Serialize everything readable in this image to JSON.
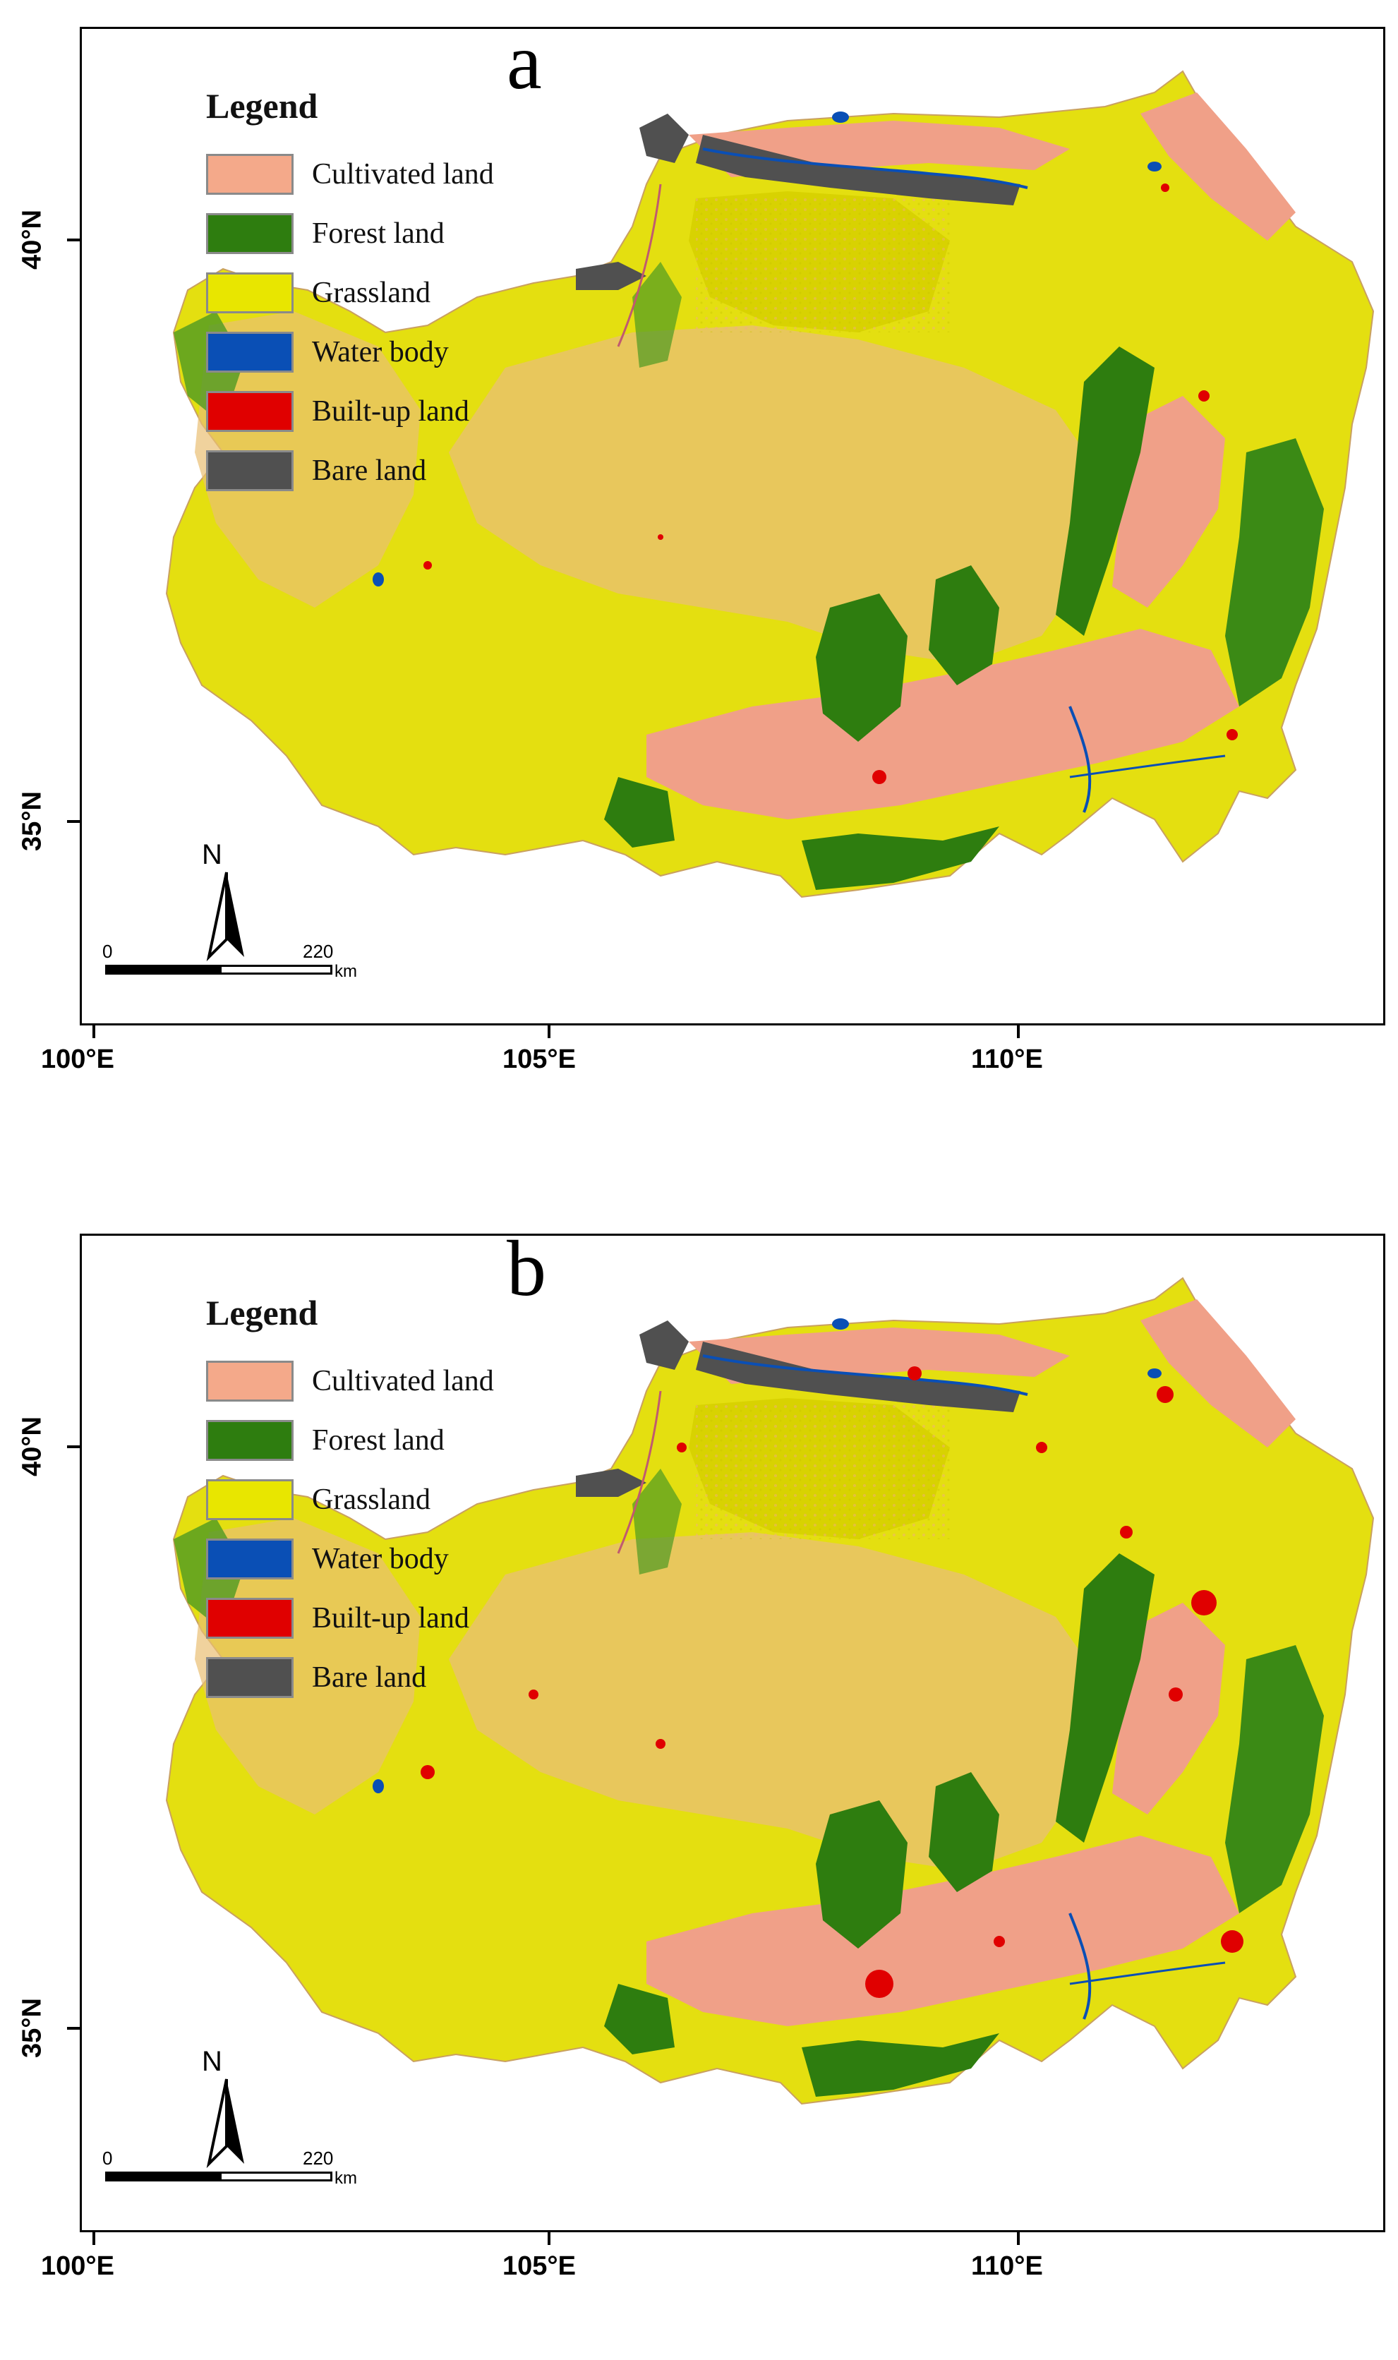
{
  "panels": [
    {
      "letter": "a",
      "legend": {
        "title": "Legend",
        "items": [
          {
            "label": "Cultivated land",
            "color": "#f4a98a"
          },
          {
            "label": "Forest land",
            "color": "#2e7d0f"
          },
          {
            "label": "Grassland",
            "color": "#e8e600"
          },
          {
            "label": "Water body",
            "color": "#0a4fb5"
          },
          {
            "label": "Built-up land",
            "color": "#e00000"
          },
          {
            "label": "Bare land",
            "color": "#505050"
          }
        ]
      },
      "axes": {
        "x_ticks": [
          "100°E",
          "105°E",
          "110°E"
        ],
        "y_ticks": [
          "40°N",
          "35°N"
        ]
      },
      "north_arrow": "N",
      "scalebar": {
        "start": "0",
        "end": "220",
        "unit": "km"
      }
    },
    {
      "letter": "b",
      "legend": {
        "title": "Legend",
        "items": [
          {
            "label": "Cultivated land",
            "color": "#f4a98a"
          },
          {
            "label": "Forest land",
            "color": "#2e7d0f"
          },
          {
            "label": "Grassland",
            "color": "#e8e600"
          },
          {
            "label": "Water body",
            "color": "#0a4fb5"
          },
          {
            "label": "Built-up land",
            "color": "#e00000"
          },
          {
            "label": "Bare land",
            "color": "#505050"
          }
        ]
      },
      "axes": {
        "x_ticks": [
          "100°E",
          "105°E",
          "110°E"
        ],
        "y_ticks": [
          "40°N",
          "35°N"
        ]
      },
      "north_arrow": "N",
      "scalebar": {
        "start": "0",
        "end": "220",
        "unit": "km"
      }
    }
  ]
}
